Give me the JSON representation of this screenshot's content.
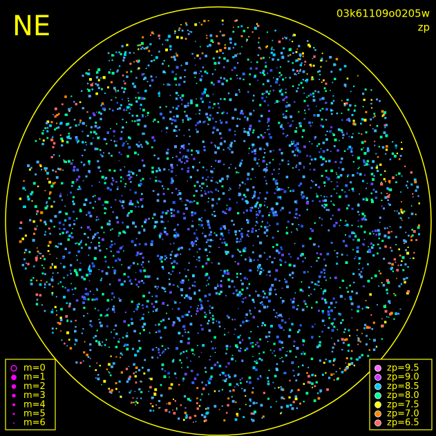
{
  "corner_label": "NE",
  "image_id": "03k61109o0205w",
  "quantity": "zp",
  "m_legend": {
    "color": "#ff00ff",
    "items": [
      "m=0",
      "m=1",
      "m=2",
      "m=3",
      "m=4",
      "m=5",
      "m=6"
    ]
  },
  "zp_legend": [
    {
      "label": "zp=9.5",
      "color": "#ff66ff"
    },
    {
      "label": "zp=9.0",
      "color": "#cc33ff"
    },
    {
      "label": "zp=8.5",
      "color": "#00ccff"
    },
    {
      "label": "zp=8.0",
      "color": "#00ff99"
    },
    {
      "label": "zp=7.5",
      "color": "#ffff00"
    },
    {
      "label": "zp=7.0",
      "color": "#ff8800"
    },
    {
      "label": "zp=6.5",
      "color": "#ff6666"
    }
  ],
  "frame_color": "#ffff00"
}
